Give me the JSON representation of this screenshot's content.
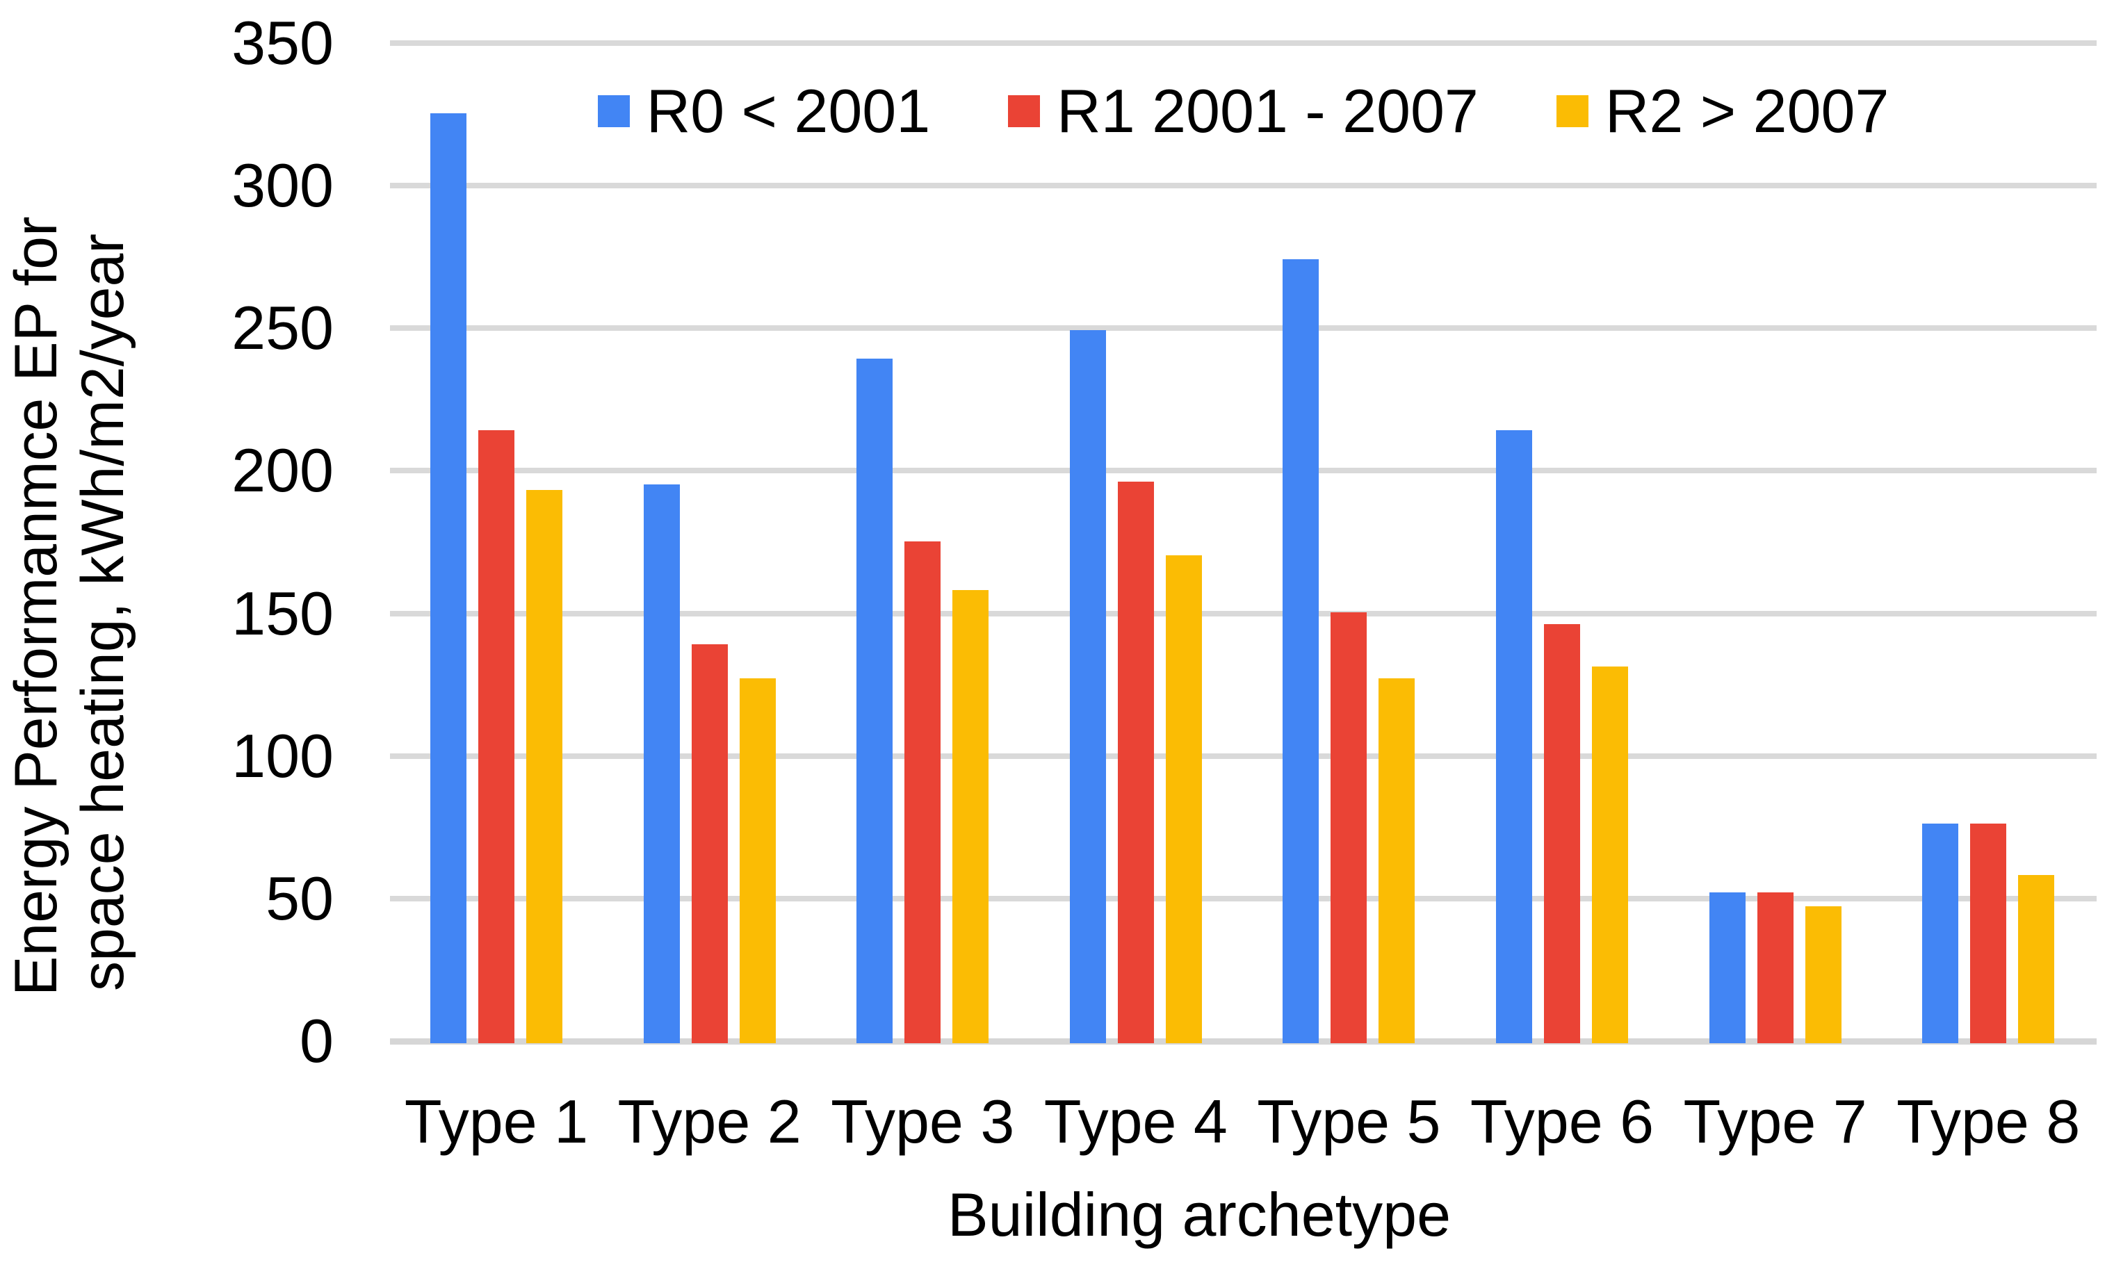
{
  "chart_data": {
    "type": "bar",
    "title": "",
    "categories": [
      "Type 1",
      "Type 2",
      "Type 3",
      "Type 4",
      "Type 5",
      "Type 6",
      "Type 7",
      "Type 8"
    ],
    "series": [
      {
        "name": "R0 < 2001",
        "color": "#4285F4",
        "values": [
          326,
          196,
          240,
          250,
          275,
          215,
          53,
          77
        ]
      },
      {
        "name": "R1 2001 - 2007",
        "color": "#EA4335",
        "values": [
          215,
          140,
          176,
          197,
          151,
          147,
          53,
          77
        ]
      },
      {
        "name": "R2 > 2007",
        "color": "#FBBC04",
        "values": [
          194,
          128,
          159,
          171,
          128,
          132,
          48,
          59
        ]
      }
    ],
    "xlabel": "Building archetype",
    "ylabel": "Energy Performanmce EP for space heating, kWh/m2/year",
    "ylabel_lines": [
      "Energy Performanmce EP for",
      "space heating, kWh/m2/year"
    ],
    "ylim": [
      0,
      350
    ],
    "ytick_step": 50,
    "yticks": [
      0,
      50,
      100,
      150,
      200,
      250,
      300,
      350
    ],
    "grid": "horizontal-only",
    "legend_position": "top-center",
    "colors": {
      "background": "#FFFFFF",
      "gridline": "#D9D9D9",
      "axis_text": "#000000"
    }
  }
}
